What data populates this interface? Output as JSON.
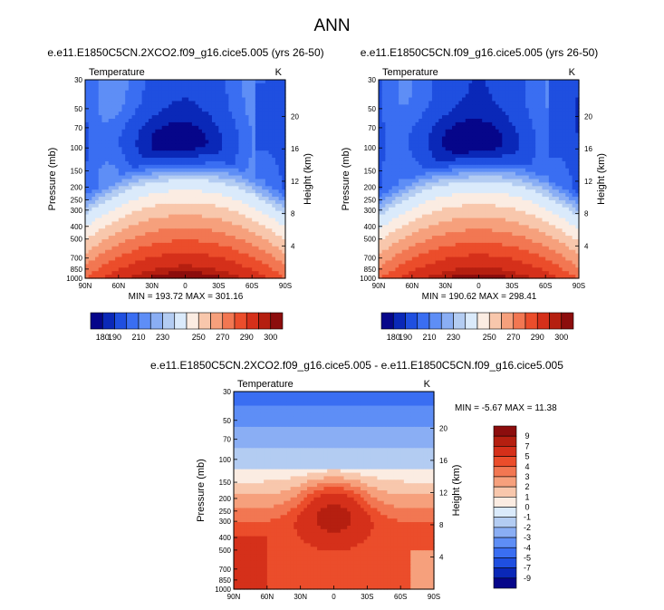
{
  "page_title": "ANN",
  "panels": [
    {
      "case": "e.e11.E1850C5CN.2XCO2.f09_g16.cice5.005 (yrs 26-50)",
      "variable": "Temperature",
      "units": "K",
      "stats": "MIN = 193.72  MAX = 301.16"
    },
    {
      "case": "e.e11.E1850C5CN.f09_g16.cice5.005 (yrs 26-50)",
      "variable": "Temperature",
      "units": "K",
      "stats": "MIN = 190.62  MAX = 298.41"
    },
    {
      "case": "e.e11.E1850C5CN.2XCO2.f09_g16.cice5.005 - e.e11.E1850C5CN.f09_g16.cice5.005",
      "variable": "Temperature",
      "units": "K",
      "stats": "MIN = -5.67  MAX = 11.38"
    }
  ],
  "axes": {
    "ylabel_left": "Pressure (mb)",
    "ylabel_right": "Height (km)",
    "pressure_ticks": [
      "30",
      "50",
      "70",
      "100",
      "150",
      "200",
      "250",
      "300",
      "400",
      "500",
      "700",
      "850",
      "1000"
    ],
    "height_ticks": [
      "20",
      "16",
      "12",
      "8",
      "4"
    ],
    "lat_ticks": [
      "90N",
      "60N",
      "30N",
      "0",
      "30S",
      "60S",
      "90S"
    ]
  },
  "colorbar_abs": {
    "orientation": "horizontal",
    "labels": [
      "180",
      "190",
      "210",
      "230",
      "250",
      "270",
      "290",
      "300"
    ],
    "colors": [
      "#06068a",
      "#0a28b8",
      "#1f4fe0",
      "#3a6ef2",
      "#5e8ef6",
      "#8aaef4",
      "#b3ccf2",
      "#daeafb",
      "#fbece2",
      "#f8c7ac",
      "#f6a07c",
      "#f27752",
      "#eb4d2b",
      "#d5301a",
      "#b51f10",
      "#8c0d0d"
    ]
  },
  "colorbar_diff": {
    "orientation": "vertical",
    "labels": [
      "9",
      "7",
      "5",
      "4",
      "3",
      "2",
      "1",
      "0",
      "-1",
      "-2",
      "-3",
      "-4",
      "-5",
      "-7",
      "-9"
    ],
    "colors": [
      "#8c0d0d",
      "#b51f10",
      "#d5301a",
      "#eb4d2b",
      "#f27752",
      "#f6a07c",
      "#f8c7ac",
      "#fbece2",
      "#daeafb",
      "#b3ccf2",
      "#8aaef4",
      "#5e8ef6",
      "#3a6ef2",
      "#1f4fe0",
      "#0a28b8",
      "#06068a"
    ]
  },
  "chart_data": [
    {
      "type": "heatmap",
      "title": "e.e11.E1850C5CN.2XCO2.f09_g16.cice5.005 (yrs 26-50)",
      "variable": "Temperature (K)",
      "xlabel": "",
      "ylabel": "Pressure (mb)",
      "ylabel_right": "Height (km)",
      "x": [
        "90N",
        "60N",
        "30N",
        "0",
        "30S",
        "60S",
        "90S"
      ],
      "y_pressure_mb": [
        30,
        50,
        70,
        100,
        150,
        200,
        250,
        300,
        400,
        500,
        700,
        850,
        1000
      ],
      "y_scale": "log (reversed)",
      "value_range": [
        193.72,
        301.16
      ],
      "contour_levels": [
        180,
        190,
        210,
        230,
        250,
        270,
        290,
        300
      ]
    },
    {
      "type": "heatmap",
      "title": "e.e11.E1850C5CN.f09_g16.cice5.005 (yrs 26-50)",
      "variable": "Temperature (K)",
      "xlabel": "",
      "ylabel": "Pressure (mb)",
      "ylabel_right": "Height (km)",
      "x": [
        "90N",
        "60N",
        "30N",
        "0",
        "30S",
        "60S",
        "90S"
      ],
      "y_pressure_mb": [
        30,
        50,
        70,
        100,
        150,
        200,
        250,
        300,
        400,
        500,
        700,
        850,
        1000
      ],
      "y_scale": "log (reversed)",
      "value_range": [
        190.62,
        298.41
      ],
      "contour_levels": [
        180,
        190,
        210,
        230,
        250,
        270,
        290,
        300
      ]
    },
    {
      "type": "heatmap",
      "title": "e.e11.E1850C5CN.2XCO2.f09_g16.cice5.005 - e.e11.E1850C5CN.f09_g16.cice5.005",
      "variable": "Temperature difference (K)",
      "xlabel": "",
      "ylabel": "Pressure (mb)",
      "ylabel_right": "Height (km)",
      "x": [
        "90N",
        "60N",
        "30N",
        "0",
        "30S",
        "60S",
        "90S"
      ],
      "y_pressure_mb": [
        30,
        50,
        70,
        100,
        150,
        200,
        250,
        300,
        400,
        500,
        700,
        850,
        1000
      ],
      "y_scale": "log (reversed)",
      "value_range": [
        -5.67,
        11.38
      ],
      "contour_levels": [
        -9,
        -7,
        -5,
        -4,
        -3,
        -2,
        -1,
        0,
        1,
        2,
        3,
        4,
        5,
        7,
        9
      ]
    }
  ]
}
